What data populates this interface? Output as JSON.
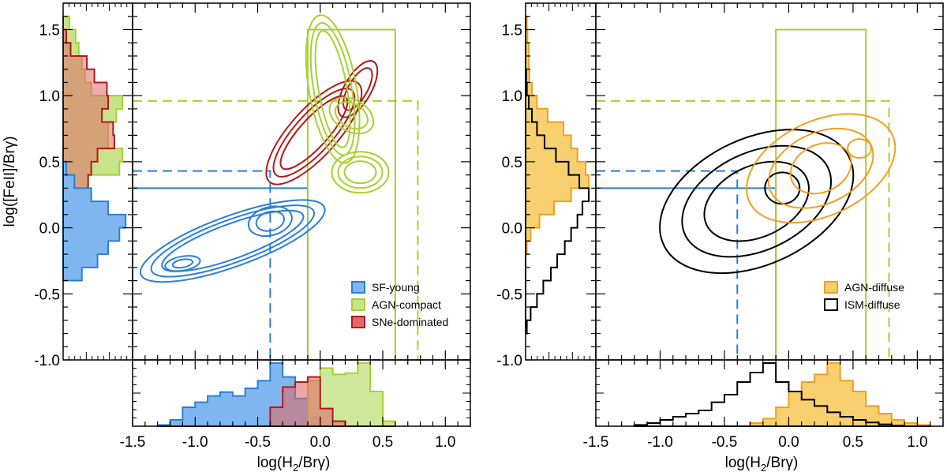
{
  "colors": {
    "sf": "#2a7fd9",
    "sf_fill": "#7fb6f0",
    "agn": "#a8d030",
    "agn_fill": "#c8e48a",
    "sne": "#b01a1a",
    "sne_fill": "#e06a6a",
    "agnd": "#f0a020",
    "agnd_fill": "#f8d070",
    "ism": "#000000"
  },
  "axis_labels": {
    "x_left": "log(H₂/Brγ)",
    "x_right": "log(H₂/Brγ)",
    "y": "log([FeII]/Brγ)"
  },
  "legend_left": [
    "SF-young",
    "AGN-compact",
    "SNe-dominated"
  ],
  "legend_right": [
    "AGN-diffuse",
    "ISM-diffuse"
  ],
  "chart_data": [
    {
      "panel": "left",
      "type": "line",
      "description_series": [
        "SF-young",
        "AGN-compact",
        "SNe-dominated"
      ],
      "xlim": [
        -1.5,
        1.2
      ],
      "ylim": [
        -1.0,
        1.7
      ],
      "x_ticks": [
        "-1.5",
        "-1.0",
        "-0.5",
        "0.0",
        "0.5",
        "1.0"
      ],
      "y_ticks": [
        "-1.0",
        "-0.5",
        "0.0",
        "0.5",
        "1.0",
        "1.5"
      ],
      "boundary_lines": {
        "solid_blue": {
          "x": -0.1,
          "y": 0.3
        },
        "dashed_blue": {
          "x": -0.4,
          "y": 0.43
        },
        "solid_green_box": {
          "x0": -0.1,
          "x1": 0.6,
          "y": 1.5
        },
        "dashed_green": {
          "x": 0.78,
          "y": 0.96
        }
      },
      "contours": [
        {
          "name": "SF-young",
          "centers": [
            [
              -0.4,
              0.05
            ],
            [
              -1.0,
              -0.25
            ]
          ]
        },
        {
          "name": "SNe-dominated",
          "centers": [
            [
              -0.15,
              0.5
            ],
            [
              0.25,
              1.0
            ]
          ]
        },
        {
          "name": "AGN-compact",
          "centers": [
            [
              0.3,
              0.45
            ],
            [
              0.15,
              1.1
            ]
          ]
        }
      ],
      "hist_x": {
        "bins": [
          -1.25,
          -1.15,
          -1.05,
          -0.95,
          -0.85,
          -0.75,
          -0.65,
          -0.55,
          -0.45,
          -0.35,
          -0.25,
          -0.15,
          -0.05,
          0.05,
          0.15,
          0.25,
          0.35,
          0.45,
          0.55
        ],
        "series": [
          {
            "name": "SF-young",
            "values": [
              0.02,
              0.1,
              0.3,
              0.38,
              0.48,
              0.54,
              0.48,
              0.6,
              0.72,
              1.0,
              0.78,
              0.44,
              0.14,
              0,
              0,
              0,
              0,
              0,
              0
            ]
          },
          {
            "name": "SNe-dominated",
            "values": [
              0,
              0,
              0,
              0,
              0,
              0,
              0,
              0,
              0,
              0.3,
              0.62,
              0.7,
              0.78,
              0.28,
              0.08,
              0,
              0,
              0,
              0
            ]
          },
          {
            "name": "AGN-compact",
            "values": [
              0,
              0,
              0,
              0,
              0,
              0,
              0,
              0,
              0,
              0,
              0,
              0,
              0.72,
              0.92,
              0.82,
              0.84,
              1.0,
              0.55,
              0.08
            ]
          }
        ]
      },
      "hist_y": {
        "bins": [
          -0.35,
          -0.25,
          -0.15,
          -0.05,
          0.05,
          0.15,
          0.25,
          0.35,
          0.45,
          0.55,
          0.65,
          0.75,
          0.85,
          0.95,
          1.05,
          1.15,
          1.25,
          1.35,
          1.45,
          1.55
        ],
        "series": [
          {
            "name": "SF-young",
            "values": [
              0.3,
              0.55,
              0.72,
              0.9,
              1.0,
              0.72,
              0.45,
              0.18,
              0.05,
              0,
              0,
              0,
              0,
              0,
              0,
              0,
              0,
              0,
              0,
              0
            ]
          },
          {
            "name": "AGN-compact",
            "values": [
              0,
              0,
              0,
              0,
              0.1,
              0.2,
              0.35,
              0.4,
              0.9,
              0.95,
              0.72,
              0.72,
              0.85,
              0.95,
              0.45,
              0.35,
              0.3,
              0.25,
              0.2,
              0.1
            ]
          },
          {
            "name": "SNe-dominated",
            "values": [
              0,
              0,
              0,
              0,
              0,
              0.1,
              0.35,
              0.4,
              0.45,
              0.55,
              0.82,
              0.8,
              0.62,
              0.72,
              0.7,
              0.5,
              0.38,
              0.12,
              0.05,
              0
            ]
          }
        ]
      }
    },
    {
      "panel": "right",
      "type": "line",
      "description_series": [
        "AGN-diffuse",
        "ISM-diffuse"
      ],
      "xlim": [
        -1.5,
        1.2
      ],
      "ylim": [
        -1.0,
        1.7
      ],
      "x_ticks": [
        "-1.5",
        "-1.0",
        "-0.5",
        "0.0",
        "0.5",
        "1.0"
      ],
      "y_ticks": [
        "-1.0",
        "-0.5",
        "0.0",
        "0.5",
        "1.0",
        "1.5"
      ],
      "boundary_lines": {
        "solid_blue": {
          "x": -0.1,
          "y": 0.3
        },
        "dashed_blue": {
          "x": -0.4,
          "y": 0.43
        },
        "solid_green_box": {
          "x0": -0.1,
          "x1": 0.6,
          "y": 1.5
        },
        "dashed_green": {
          "x": 0.78,
          "y": 0.96
        }
      },
      "contours": [
        {
          "name": "AGN-diffuse",
          "centers": [
            [
              0.2,
              0.4
            ]
          ]
        },
        {
          "name": "ISM-diffuse",
          "centers": [
            [
              -0.2,
              0.2
            ]
          ]
        }
      ],
      "hist_x": {
        "bins": [
          -1.15,
          -1.05,
          -0.95,
          -0.85,
          -0.75,
          -0.65,
          -0.55,
          -0.45,
          -0.35,
          -0.25,
          -0.15,
          -0.05,
          0.05,
          0.15,
          0.25,
          0.35,
          0.45,
          0.55,
          0.65,
          0.75,
          0.85,
          0.95,
          1.05
        ],
        "series": [
          {
            "name": "AGN-diffuse",
            "values": [
              0,
              0,
              0,
              0,
              0,
              0,
              0,
              0,
              0,
              0.05,
              0.12,
              0.3,
              0.55,
              0.7,
              0.82,
              1.0,
              0.72,
              0.55,
              0.32,
              0.2,
              0.1,
              0.05,
              0.02
            ]
          },
          {
            "name": "ISM-diffuse",
            "values": [
              0.02,
              0.05,
              0.1,
              0.15,
              0.2,
              0.25,
              0.38,
              0.5,
              0.7,
              0.85,
              1.0,
              0.7,
              0.55,
              0.42,
              0.32,
              0.22,
              0.15,
              0.1,
              0.06,
              0.03,
              0.01,
              0,
              0
            ]
          }
        ]
      },
      "hist_y": {
        "bins": [
          -0.75,
          -0.65,
          -0.55,
          -0.45,
          -0.35,
          -0.25,
          -0.15,
          -0.05,
          0.05,
          0.15,
          0.25,
          0.35,
          0.45,
          0.55,
          0.65,
          0.75,
          0.85,
          0.95,
          1.05,
          1.15,
          1.25,
          1.35,
          1.45,
          1.55
        ],
        "series": [
          {
            "name": "AGN-diffuse",
            "values": [
              0,
              0,
              0,
              0,
              0,
              0,
              0.02,
              0.08,
              0.22,
              0.45,
              0.72,
              1.0,
              0.95,
              0.82,
              0.72,
              0.6,
              0.35,
              0.18,
              0.1,
              0.06,
              0.05,
              0.05,
              0.03,
              0.02
            ]
          },
          {
            "name": "ISM-diffuse",
            "values": [
              0.02,
              0.08,
              0.18,
              0.28,
              0.4,
              0.5,
              0.62,
              0.72,
              0.82,
              0.9,
              1.0,
              0.85,
              0.68,
              0.48,
              0.3,
              0.18,
              0.1,
              0.05,
              0.02,
              0.01,
              0,
              0,
              0,
              0
            ]
          }
        ]
      }
    }
  ]
}
